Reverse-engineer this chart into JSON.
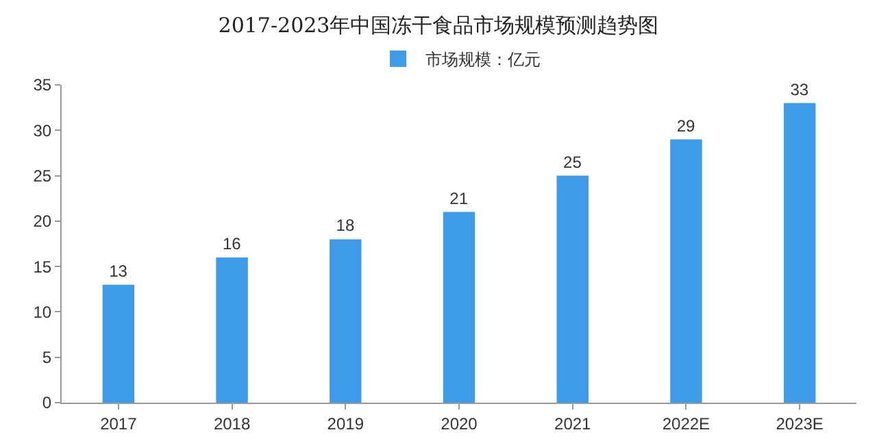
{
  "chart_data": {
    "type": "bar",
    "title": "2017-2023年中国冻干食品市场规模预测趋势图",
    "categories": [
      "2017",
      "2018",
      "2019",
      "2020",
      "2021",
      "2022E",
      "2023E"
    ],
    "series": [
      {
        "name": "市场规模：亿元",
        "color": "#3d9be9",
        "values": [
          13,
          16,
          18,
          21,
          25,
          29,
          33
        ]
      }
    ],
    "ylim": [
      0,
      35
    ],
    "yticks": [
      0,
      5,
      10,
      15,
      20,
      25,
      30,
      35
    ],
    "data_labels": true,
    "legend": "top",
    "grid": false
  }
}
